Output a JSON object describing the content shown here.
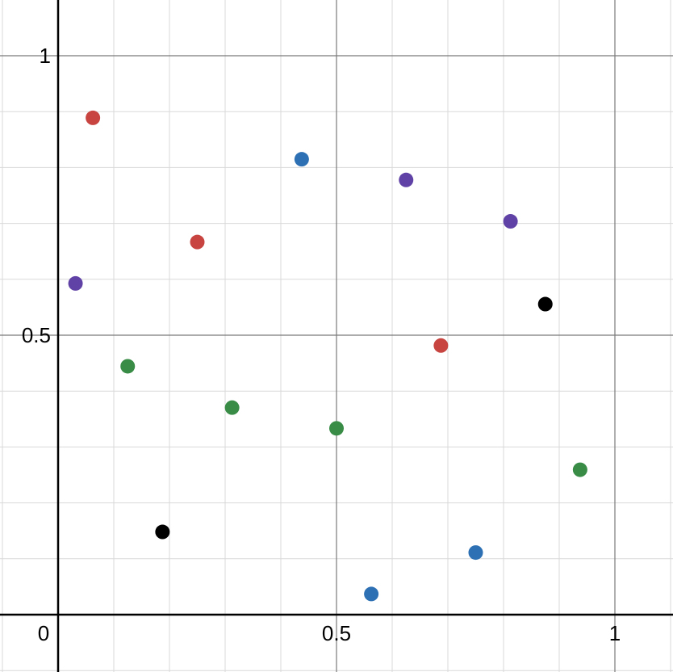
{
  "chart_data": {
    "type": "scatter",
    "title": "",
    "xlabel": "",
    "ylabel": "",
    "xlim": [
      -0.1,
      1.1
    ],
    "ylim": [
      -0.1,
      1.05
    ],
    "grid": true,
    "x_tick_labels": [
      {
        "value": 0,
        "label": "0"
      },
      {
        "value": 0.5,
        "label": "0.5"
      },
      {
        "value": 1,
        "label": "1"
      }
    ],
    "y_tick_labels": [
      {
        "value": 0.5,
        "label": "0.5"
      },
      {
        "value": 1,
        "label": "1"
      }
    ],
    "series": [
      {
        "color": "#c74440",
        "points": [
          {
            "x": 0.0625,
            "y": 0.8889
          },
          {
            "x": 0.25,
            "y": 0.6667
          },
          {
            "x": 0.6875,
            "y": 0.4815
          }
        ]
      },
      {
        "color": "#2d70b3",
        "points": [
          {
            "x": 0.4375,
            "y": 0.8148
          },
          {
            "x": 0.5625,
            "y": 0.037
          },
          {
            "x": 0.75,
            "y": 0.1111
          }
        ]
      },
      {
        "color": "#6042a6",
        "points": [
          {
            "x": 0.03125,
            "y": 0.5926
          },
          {
            "x": 0.625,
            "y": 0.7778
          },
          {
            "x": 0.8125,
            "y": 0.7037
          }
        ]
      },
      {
        "color": "#388c46",
        "points": [
          {
            "x": 0.125,
            "y": 0.4444
          },
          {
            "x": 0.3125,
            "y": 0.3704
          },
          {
            "x": 0.5,
            "y": 0.3333
          },
          {
            "x": 0.9375,
            "y": 0.2593
          }
        ]
      },
      {
        "color": "#000000",
        "points": [
          {
            "x": 0.1875,
            "y": 0.1481
          },
          {
            "x": 0.875,
            "y": 0.5556
          }
        ]
      }
    ]
  }
}
